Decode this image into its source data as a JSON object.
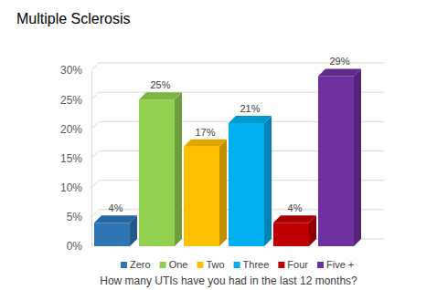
{
  "chart_data": {
    "type": "bar",
    "title": "Multiple Sclerosis",
    "x_label": "How many UTIs have you had in the last 12 months?",
    "categories": [
      "Zero",
      "One",
      "Two",
      "Three",
      "Four",
      "Five +"
    ],
    "values": [
      4,
      25,
      17,
      21,
      4,
      29
    ],
    "value_labels": [
      "4%",
      "25%",
      "17%",
      "21%",
      "4%",
      "29%"
    ],
    "colors": [
      "#2e75b6",
      "#92d050",
      "#ffc000",
      "#00b0f0",
      "#c00000",
      "#7030a0"
    ],
    "ylim": [
      0,
      30
    ],
    "yticks": [
      {
        "value": 0,
        "label": "0%"
      },
      {
        "value": 5,
        "label": "5%"
      },
      {
        "value": 10,
        "label": "10%"
      },
      {
        "value": 15,
        "label": "15%"
      },
      {
        "value": 20,
        "label": "20%"
      },
      {
        "value": 25,
        "label": "25%"
      },
      {
        "value": 30,
        "label": "30%"
      }
    ],
    "grid": true,
    "data_labels": true,
    "legend": "bottom",
    "tick_labels": "y"
  }
}
